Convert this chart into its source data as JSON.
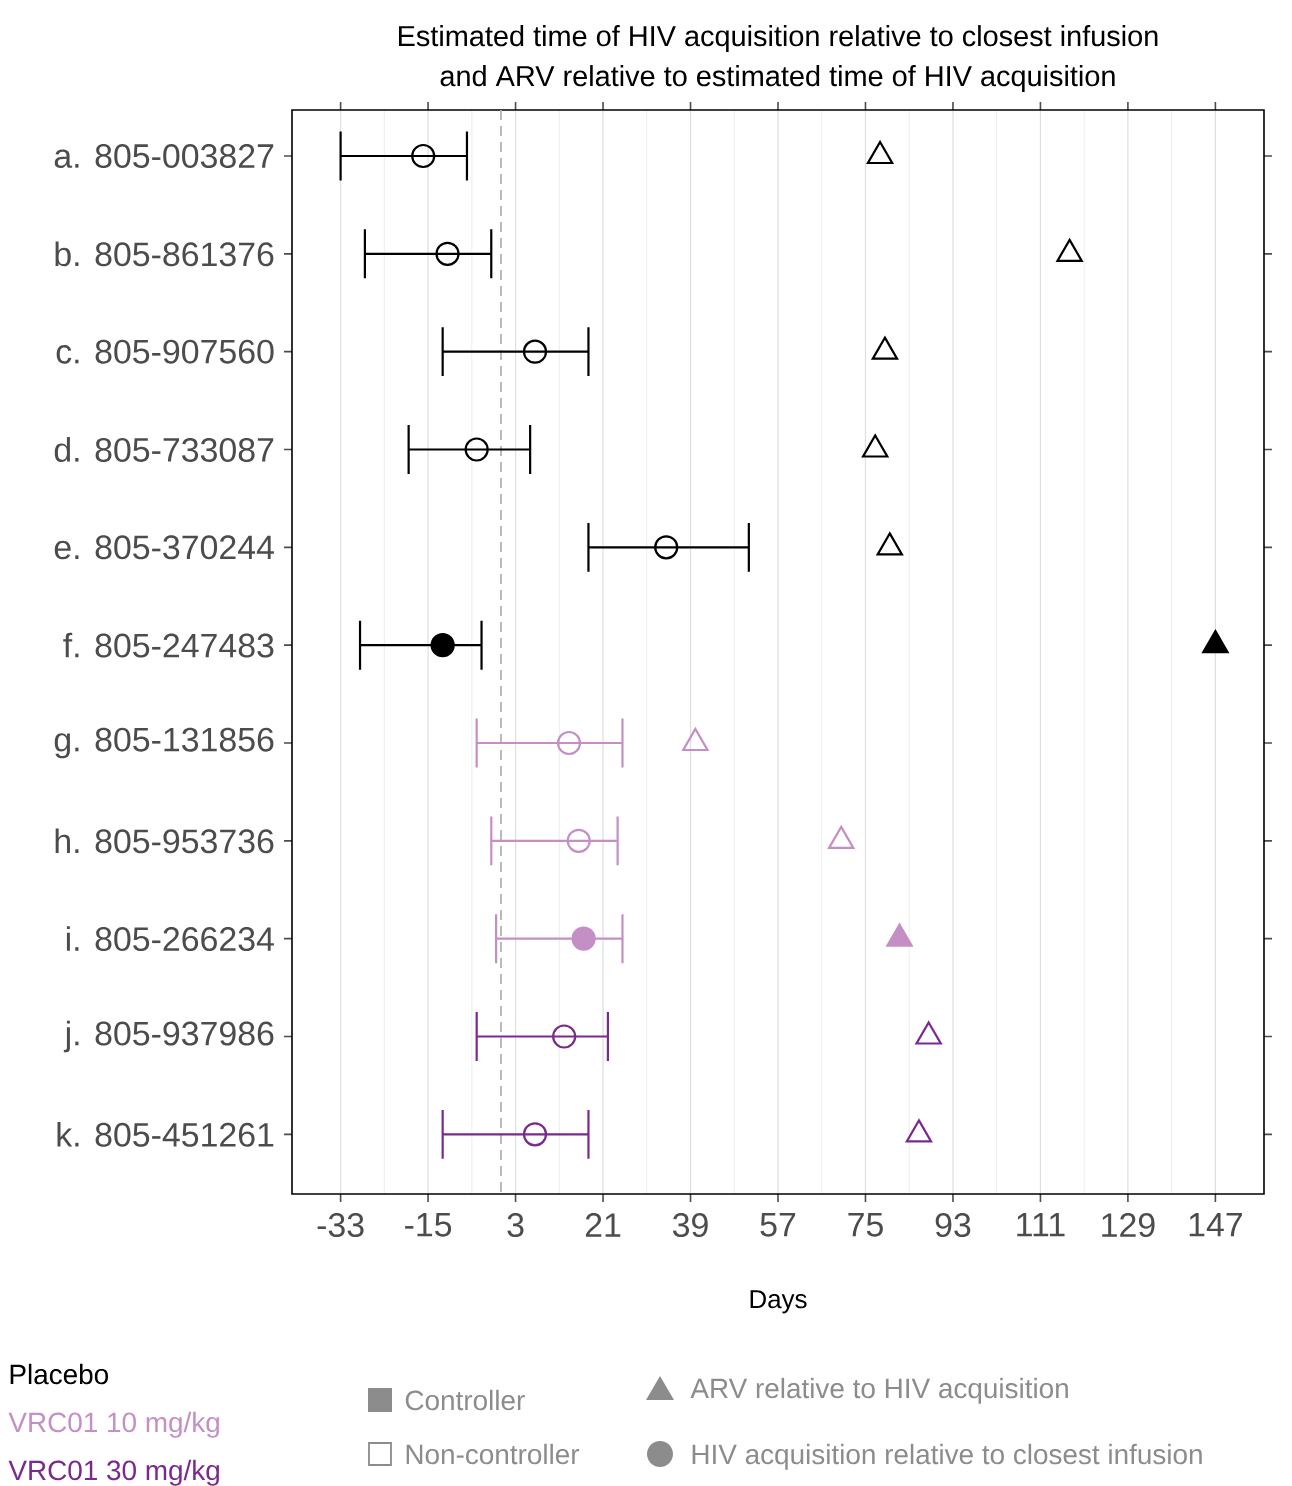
{
  "chart_data": {
    "type": "scatter",
    "orientation": "horizontal",
    "title": "Estimated time of HIV acquisition relative to closest infusion",
    "subtitle": "and ARV relative to estimated time of HIV acquisition",
    "xlabel": "Days",
    "categories": [
      "a. 805-003827",
      "b. 805-861376",
      "c. 805-907560",
      "d. 805-733087",
      "e. 805-370244",
      "f. 805-247483",
      "g. 805-131856",
      "h. 805-953736",
      "i. 805-266234",
      "j. 805-937986",
      "k. 805-451261"
    ],
    "xlim": [
      -43,
      157
    ],
    "xticks": [
      -33,
      -15,
      3,
      21,
      39,
      57,
      75,
      93,
      111,
      129,
      147
    ],
    "grid": "x",
    "ref_lines": [
      {
        "axis": "x",
        "value": 0,
        "color": "#b3b3b3",
        "line_style": "dashed"
      }
    ],
    "series": [
      {
        "marker": "circle",
        "values": [
          -16,
          -11,
          7,
          -5,
          34,
          null,
          14,
          16,
          null,
          13,
          7
        ],
        "errors": [
          [
            -33,
            -7
          ],
          [
            -28,
            -2
          ],
          [
            -12,
            18
          ],
          [
            -19,
            6
          ],
          [
            18,
            51
          ],
          null,
          [
            -5,
            25
          ],
          [
            -2,
            24
          ],
          null,
          [
            -5,
            22
          ],
          [
            -12,
            18
          ]
        ],
        "colors": [
          "#000000",
          "#000000",
          "#000000",
          "#000000",
          "#000000",
          null,
          "#c48fc4",
          "#c48fc4",
          null,
          "#7a2a8c",
          "#7a2a8c"
        ]
      },
      {
        "marker": "circle",
        "values": [
          null,
          null,
          null,
          null,
          null,
          -12,
          null,
          null,
          17,
          null,
          null
        ],
        "errors": [
          null,
          null,
          null,
          null,
          null,
          [
            -29,
            -4
          ],
          null,
          null,
          [
            -1,
            25
          ],
          null,
          null
        ],
        "colors": [
          null,
          null,
          null,
          null,
          null,
          "#000000",
          null,
          null,
          "#c48fc4",
          null,
          null
        ]
      },
      {
        "marker": "triangle",
        "values": [
          78,
          117,
          79,
          77,
          80,
          null,
          40,
          70,
          null,
          88,
          86
        ],
        "colors": [
          "#000000",
          "#000000",
          "#000000",
          "#000000",
          "#000000",
          null,
          "#c48fc4",
          "#c48fc4",
          null,
          "#7a2a8c",
          "#7a2a8c"
        ]
      },
      {
        "marker": "triangle",
        "values": [
          null,
          null,
          null,
          null,
          null,
          147,
          null,
          null,
          82,
          null,
          null
        ],
        "colors": [
          null,
          null,
          null,
          null,
          null,
          "#000000",
          null,
          null,
          "#c48fc4",
          null,
          null
        ]
      }
    ],
    "annotations": [
      "Placebo",
      "VRC01 10 mg/kg",
      "VRC01 30 mg/kg",
      "Controller",
      "Non-controller",
      "ARV relative to HIV acquisition",
      "HIV acquisition relative to closest infusion"
    ]
  }
}
